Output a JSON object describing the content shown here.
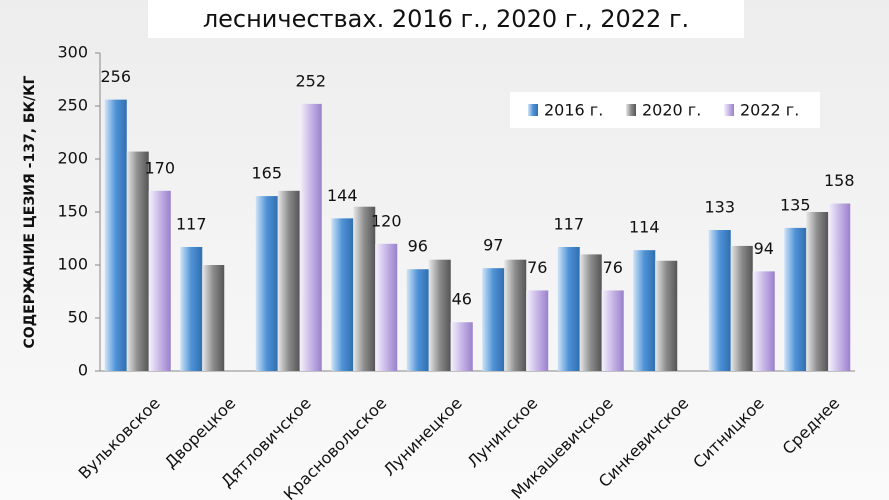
{
  "chart_data": {
    "type": "bar",
    "title": "лесничествах. 2016 г., 2020 г., 2022 г.",
    "y_label": "СОДЕРЖАНИЕ ЦЕЗИЯ -137, БК/КГ",
    "categories": [
      "Вульковское",
      "Дворецкое",
      "Дятловичское",
      "Красновольское",
      "Лунинецкое",
      "Лунинское",
      "Микашевичское",
      "Синкевичское",
      "Ситницкое",
      "Среднее"
    ],
    "series": [
      {
        "name": "2016 г.",
        "color": "#4f92d6",
        "labeled": true,
        "values": [
          256,
          117,
          165,
          144,
          96,
          97,
          117,
          114,
          133,
          135
        ]
      },
      {
        "name": "2020 г.",
        "color": "#8c8c8c",
        "labeled": false,
        "values": [
          207,
          100,
          170,
          155,
          105,
          105,
          110,
          104,
          118,
          150
        ]
      },
      {
        "name": "2022 г.",
        "color": "#b8a3dd",
        "labeled": true,
        "values": [
          170,
          null,
          252,
          120,
          46,
          76,
          76,
          null,
          94,
          158
        ]
      }
    ],
    "ylim": [
      0,
      300
    ],
    "yticks": [
      0,
      50,
      100,
      150,
      200,
      250,
      300
    ],
    "legend": "top-right"
  }
}
